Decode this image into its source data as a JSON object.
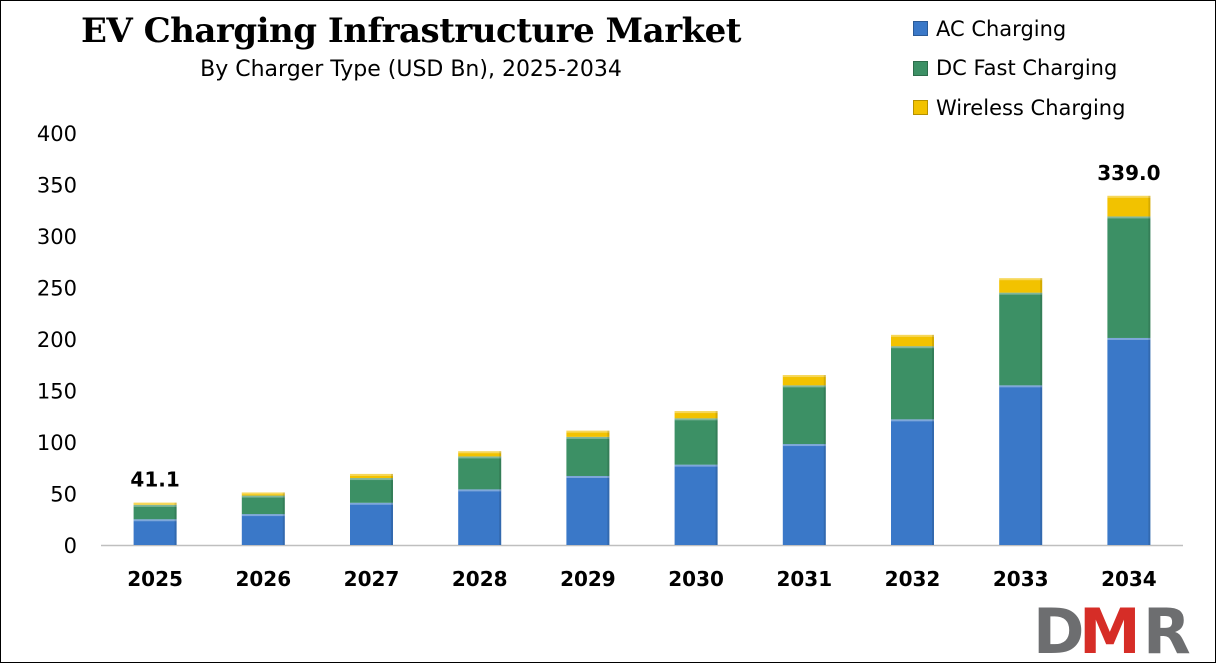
{
  "chart_data": {
    "type": "bar",
    "stacked": true,
    "title": "EV Charging Infrastructure Market",
    "subtitle": "By Charger Type (USD Bn), 2025-2034",
    "categories": [
      "2025",
      "2026",
      "2027",
      "2028",
      "2029",
      "2030",
      "2031",
      "2032",
      "2033",
      "2034"
    ],
    "series": [
      {
        "name": "AC Charging",
        "color": "#3a78c8",
        "values": [
          25,
          30,
          41,
          54,
          67,
          78,
          98,
          122,
          155,
          201
        ]
      },
      {
        "name": "DC Fast Charging",
        "color": "#3c9065",
        "values": [
          14,
          18,
          24,
          32,
          38,
          45,
          57,
          71,
          90,
          118
        ]
      },
      {
        "name": "Wireless Charging",
        "color": "#f2c200",
        "values": [
          2.1,
          3,
          4,
          5,
          6,
          7,
          10,
          11,
          14,
          20
        ]
      }
    ],
    "total_labels": [
      {
        "category": "2025",
        "text": "41.1"
      },
      {
        "category": "2034",
        "text": "339.0"
      }
    ],
    "y_ticks": [
      "0",
      "50",
      "100",
      "150",
      "200",
      "250",
      "300",
      "350",
      "400"
    ],
    "ylim": [
      0,
      400
    ],
    "xlabel": "",
    "ylabel": "",
    "grid": false,
    "legend": "top-right"
  },
  "logo": {
    "text": "DMR",
    "color_d": "#6d6e70",
    "color_m": "#d62d27",
    "color_r": "#6d6e70"
  }
}
